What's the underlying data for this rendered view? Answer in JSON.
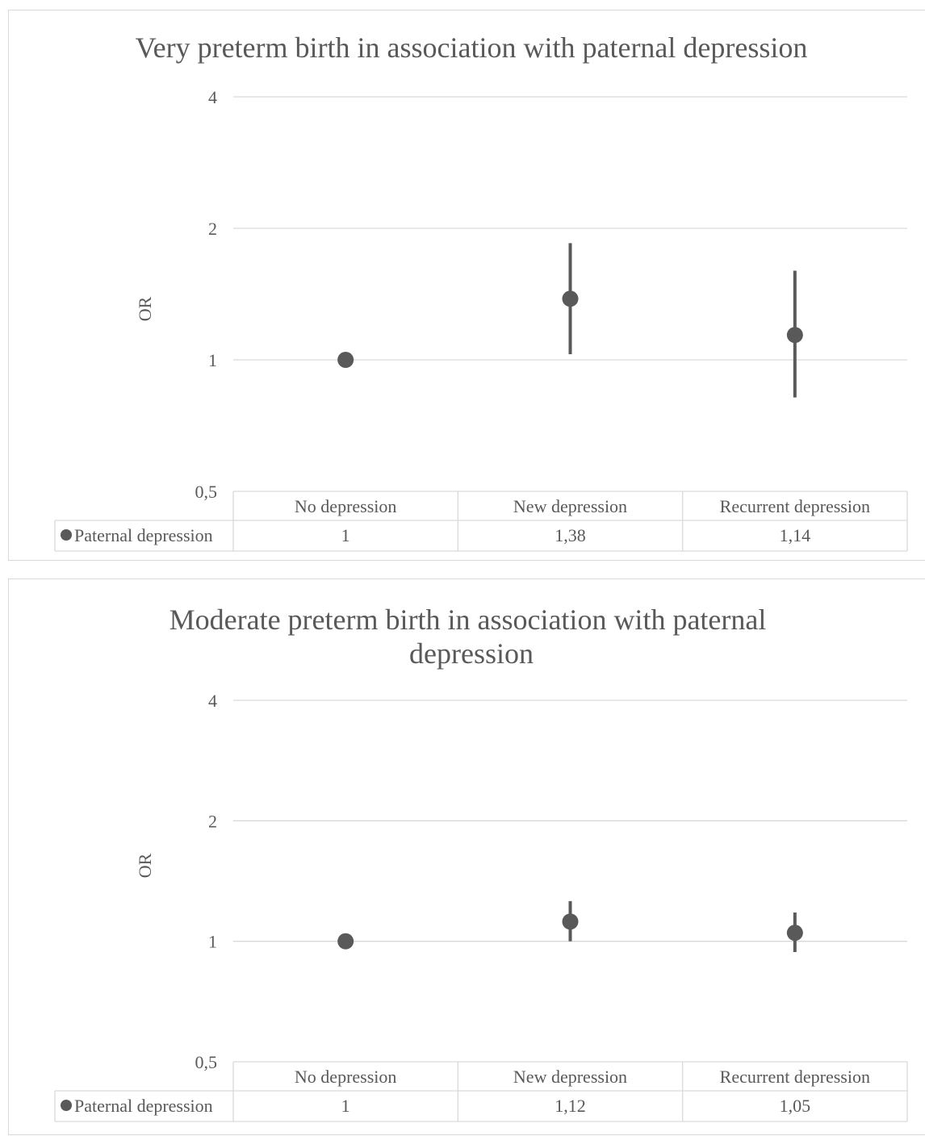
{
  "chart_data": [
    {
      "type": "scatter",
      "title": "Very preterm birth in association with paternal depression",
      "ylabel": "OR",
      "y_scale": "log2",
      "ylim": [
        0.5,
        4
      ],
      "y_ticks": [
        "0,5",
        "1",
        "2",
        "4"
      ],
      "categories": [
        "No depression",
        "New depression",
        "Recurrent depression"
      ],
      "series": [
        {
          "name": "Paternal depression",
          "values": [
            1,
            1.38,
            1.14
          ],
          "labels": [
            "1",
            "1,38",
            "1,14"
          ],
          "ci_low": [
            1,
            1.03,
            0.82
          ],
          "ci_high": [
            1,
            1.85,
            1.6
          ]
        }
      ],
      "grid": true,
      "legend": "data-table"
    },
    {
      "type": "scatter",
      "title": "Moderate preterm birth in association with paternal depression",
      "ylabel": "OR",
      "y_scale": "log2",
      "ylim": [
        0.5,
        4
      ],
      "y_ticks": [
        "0,5",
        "1",
        "2",
        "4"
      ],
      "categories": [
        "No depression",
        "New depression",
        "Recurrent depression"
      ],
      "series": [
        {
          "name": "Paternal depression",
          "values": [
            1,
            1.12,
            1.05
          ],
          "labels": [
            "1",
            "1,12",
            "1,05"
          ],
          "ci_low": [
            1,
            1.0,
            0.94
          ],
          "ci_high": [
            1,
            1.26,
            1.18
          ]
        }
      ],
      "grid": true,
      "legend": "data-table"
    }
  ],
  "colors": {
    "marker": "#595959",
    "grid": "#d9d9d9",
    "text": "#595959"
  }
}
